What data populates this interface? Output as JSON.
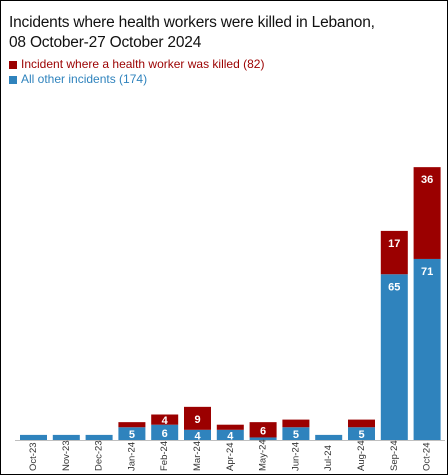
{
  "chart_data": {
    "type": "bar",
    "stacked": true,
    "title_line1": "Incidents where health workers were killed in Lebanon,",
    "title_line2": "08 October-27 October 2024",
    "categories": [
      "Oct-23",
      "Nov-23",
      "Dec-23",
      "Jan-24",
      "Feb-24",
      "Mar-24",
      "Apr-24",
      "May-24",
      "Jun-24",
      "Jul-24",
      "Aug-24",
      "Sep-24",
      "Oct-24"
    ],
    "series": [
      {
        "name": "All other incidents (174)",
        "color": "#2f83bd",
        "values": [
          2,
          2,
          2,
          5,
          6,
          4,
          4,
          1,
          5,
          2,
          5,
          65,
          71
        ],
        "labels": [
          "",
          "",
          "",
          "5",
          "6",
          "4",
          "4",
          "",
          "5",
          "",
          "5",
          "65",
          "71"
        ]
      },
      {
        "name": "Incident where a health worker was killed (82)",
        "color": "#9b0000",
        "values": [
          0,
          0,
          0,
          2,
          4,
          9,
          2,
          6,
          3,
          0,
          3,
          17,
          36
        ],
        "labels": [
          "",
          "",
          "",
          "",
          "4",
          "9",
          "",
          "6",
          "",
          "",
          "",
          "17",
          "36"
        ]
      }
    ],
    "ylim": [
      0,
      110
    ],
    "grid": false,
    "legend_position": "top-left"
  }
}
